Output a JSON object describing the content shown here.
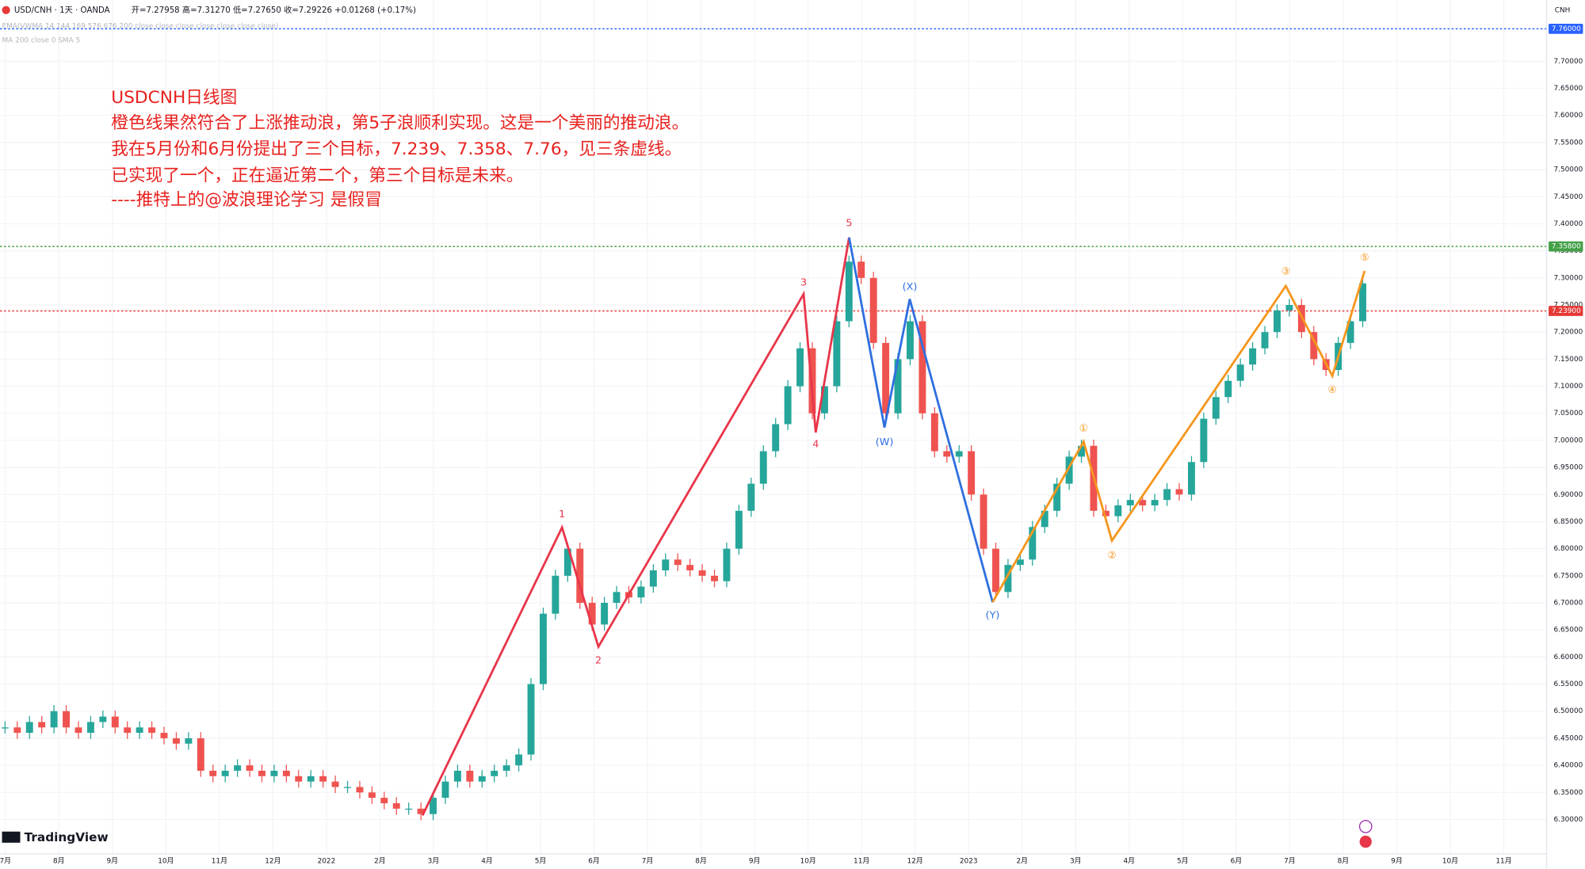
{
  "header": {
    "symbol": "USD/CNH · 1天 · OANDA",
    "ohlc": "开=7.27958 高=7.31270 低=7.27650 收=7.29226 +0.01268 (+0.17%)",
    "indicator1": "EMA(VWMA 14 144 169 576 676 200 close close close close close close close)",
    "indicator2": "MA 200 close 0 SMA 5",
    "currency": "CNH",
    "brand": "TradingView"
  },
  "notes": [
    "USDCNH日线图",
    "橙色线果然符合了上涨推动浪，第5子浪顺利实现。这是一个美丽的推动浪。",
    "我在5月份和6月份提出了三个目标，7.239、7.358、7.76，见三条虚线。",
    "已实现了一个，正在逼近第二个，第三个目标是未来。",
    "----推特上的@波浪理论学习 是假冒"
  ],
  "wave_labels": {
    "red": [
      "1",
      "2",
      "3",
      "4",
      "5"
    ],
    "blue": [
      "(W)",
      "(X)",
      "(Y)"
    ],
    "orange": [
      "①",
      "②",
      "③",
      "④",
      "⑤"
    ]
  },
  "chart_data": {
    "type": "candlestick",
    "series": [
      {
        "name": "USD/CNH",
        "up_color": "#26a69a",
        "down_color": "#ef5350",
        "values": [
          6.47,
          6.46,
          6.48,
          6.47,
          6.5,
          6.47,
          6.46,
          6.48,
          6.49,
          6.47,
          6.46,
          6.47,
          6.46,
          6.45,
          6.44,
          6.45,
          6.39,
          6.38,
          6.39,
          6.4,
          6.39,
          6.38,
          6.39,
          6.38,
          6.37,
          6.38,
          6.37,
          6.36,
          6.36,
          6.35,
          6.34,
          6.33,
          6.32,
          6.32,
          6.31,
          6.34,
          6.37,
          6.39,
          6.37,
          6.38,
          6.39,
          6.4,
          6.42,
          6.55,
          6.68,
          6.75,
          6.8,
          6.7,
          6.66,
          6.7,
          6.72,
          6.71,
          6.73,
          6.76,
          6.78,
          6.77,
          6.76,
          6.75,
          6.74,
          6.8,
          6.87,
          6.92,
          6.98,
          7.03,
          7.1,
          7.17,
          7.05,
          7.1,
          7.22,
          7.33,
          7.3,
          7.18,
          7.05,
          7.15,
          7.22,
          7.05,
          6.98,
          6.97,
          6.98,
          6.9,
          6.8,
          6.72,
          6.77,
          6.78,
          6.84,
          6.87,
          6.92,
          6.97,
          6.99,
          6.87,
          6.86,
          6.88,
          6.89,
          6.88,
          6.89,
          6.91,
          6.9,
          6.96,
          7.04,
          7.08,
          7.11,
          7.14,
          7.17,
          7.2,
          7.24,
          7.25,
          7.2,
          7.15,
          7.13,
          7.18,
          7.22,
          7.29
        ]
      }
    ],
    "ylim": [
      6.2366,
      7.8131
    ],
    "yticks": [
      {
        "value": 6.3,
        "label": "6.30000"
      },
      {
        "value": 6.35,
        "label": "6.35000"
      },
      {
        "value": 6.4,
        "label": "6.40000"
      },
      {
        "value": 6.45,
        "label": "6.45000"
      },
      {
        "value": 6.5,
        "label": "6.50000"
      },
      {
        "value": 6.55,
        "label": "6.55000"
      },
      {
        "value": 6.6,
        "label": "6.60000"
      },
      {
        "value": 6.65,
        "label": "6.65000"
      },
      {
        "value": 6.7,
        "label": "6.70000"
      },
      {
        "value": 6.75,
        "label": "6.75000"
      },
      {
        "value": 6.8,
        "label": "6.80000"
      },
      {
        "value": 6.85,
        "label": "6.85000"
      },
      {
        "value": 6.9,
        "label": "6.90000"
      },
      {
        "value": 6.95,
        "label": "6.95000"
      },
      {
        "value": 7.0,
        "label": "7.00000"
      },
      {
        "value": 7.05,
        "label": "7.05000"
      },
      {
        "value": 7.1,
        "label": "7.10000"
      },
      {
        "value": 7.15,
        "label": "7.15000"
      },
      {
        "value": 7.2,
        "label": "7.20000"
      },
      {
        "value": 7.25,
        "label": "7.25000"
      },
      {
        "value": 7.3,
        "label": "7.30000"
      },
      {
        "value": 7.35,
        "label": "7.35000"
      },
      {
        "value": 7.4,
        "label": "7.40000"
      },
      {
        "value": 7.45,
        "label": "7.45000"
      },
      {
        "value": 7.5,
        "label": "7.50000"
      },
      {
        "value": 7.55,
        "label": "7.55000"
      },
      {
        "value": 7.6,
        "label": "7.60000"
      },
      {
        "value": 7.65,
        "label": "7.65000"
      },
      {
        "value": 7.7,
        "label": "7.70000"
      }
    ],
    "xlim": [
      -0.1,
      28.8
    ],
    "xticks": [
      {
        "value": 0,
        "label": "7月"
      },
      {
        "value": 1,
        "label": "8月"
      },
      {
        "value": 2,
        "label": "9月"
      },
      {
        "value": 3,
        "label": "10月"
      },
      {
        "value": 4,
        "label": "11月"
      },
      {
        "value": 5,
        "label": "12月"
      },
      {
        "value": 6,
        "label": "2022"
      },
      {
        "value": 7,
        "label": "2月"
      },
      {
        "value": 8,
        "label": "3月"
      },
      {
        "value": 9,
        "label": "4月"
      },
      {
        "value": 10,
        "label": "5月"
      },
      {
        "value": 11,
        "label": "6月"
      },
      {
        "value": 12,
        "label": "7月"
      },
      {
        "value": 13,
        "label": "8月"
      },
      {
        "value": 14,
        "label": "9月"
      },
      {
        "value": 15,
        "label": "10月"
      },
      {
        "value": 16,
        "label": "11月"
      },
      {
        "value": 17,
        "label": "12月"
      },
      {
        "value": 18,
        "label": "2023"
      },
      {
        "value": 19,
        "label": "2月"
      },
      {
        "value": 20,
        "label": "3月"
      },
      {
        "value": 21,
        "label": "4月"
      },
      {
        "value": 22,
        "label": "5月"
      },
      {
        "value": 23,
        "label": "6月"
      },
      {
        "value": 24,
        "label": "7月"
      },
      {
        "value": 25,
        "label": "8月"
      },
      {
        "value": 26,
        "label": "9月"
      },
      {
        "value": 27,
        "label": "10月"
      },
      {
        "value": 28,
        "label": "11月"
      }
    ],
    "price_lines": [
      {
        "value": 7.76,
        "label": "7.76000",
        "color": "#2962ff"
      },
      {
        "value": 7.358,
        "label": "7.35800",
        "color": "#43a047"
      },
      {
        "value": 7.239,
        "label": "7.23900",
        "color": "#e53935"
      }
    ]
  }
}
